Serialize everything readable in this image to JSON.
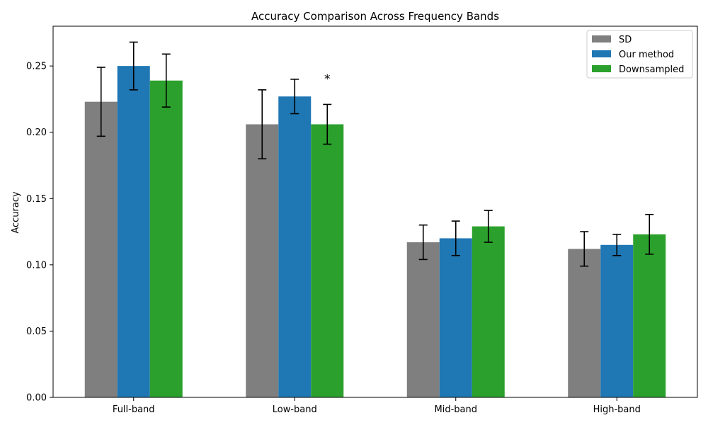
{
  "chart_data": {
    "type": "bar",
    "title": "Accuracy Comparison Across Frequency Bands",
    "xlabel": "",
    "ylabel": "Accuracy",
    "categories": [
      "Full-band",
      "Low-band",
      "Mid-band",
      "High-band"
    ],
    "ylim": [
      0,
      0.28
    ],
    "yticks": [
      0.0,
      0.05,
      0.1,
      0.15,
      0.2,
      0.25
    ],
    "ytick_labels": [
      "0.00",
      "0.05",
      "0.10",
      "0.15",
      "0.20",
      "0.25"
    ],
    "grid": false,
    "legend_position": "top-right",
    "series": [
      {
        "name": "SD",
        "color": "#7f7f7f",
        "values": [
          0.223,
          0.206,
          0.117,
          0.112
        ],
        "errors": [
          0.026,
          0.026,
          0.013,
          0.013
        ]
      },
      {
        "name": "Our method",
        "color": "#1f77b4",
        "values": [
          0.25,
          0.227,
          0.12,
          0.115
        ],
        "errors": [
          0.018,
          0.013,
          0.013,
          0.008
        ]
      },
      {
        "name": "Downsampled",
        "color": "#2ca02c",
        "values": [
          0.239,
          0.206,
          0.129,
          0.123
        ],
        "errors": [
          0.02,
          0.015,
          0.012,
          0.015
        ]
      }
    ],
    "annotations": [
      {
        "text": "*",
        "category": "Low-band",
        "series": "Downsampled",
        "y": 0.24
      }
    ]
  }
}
